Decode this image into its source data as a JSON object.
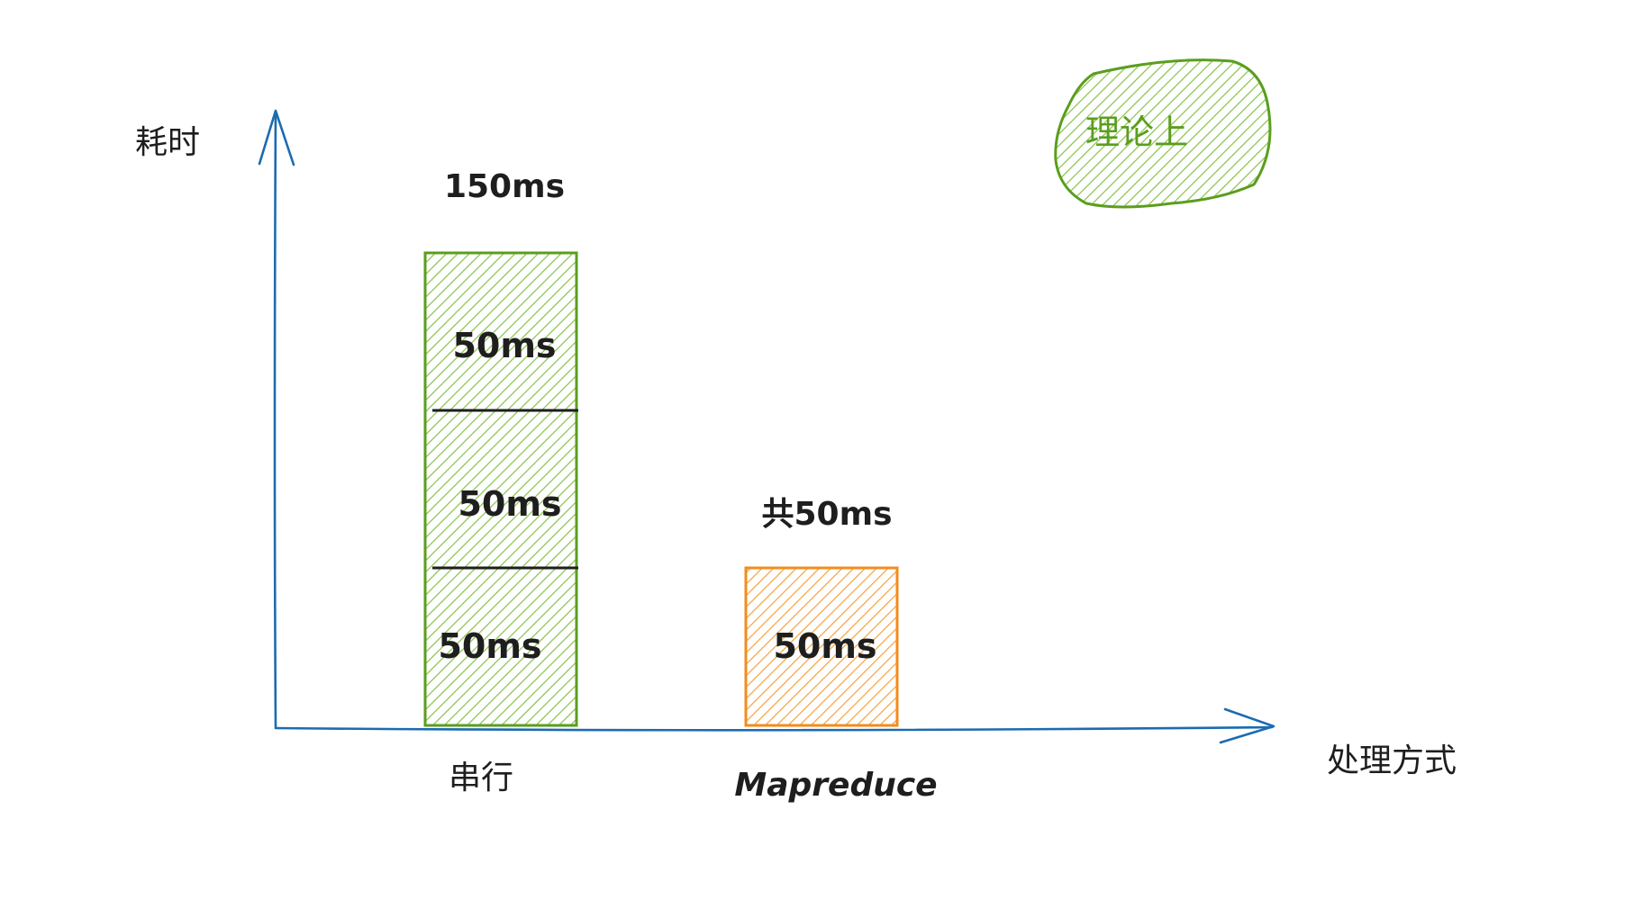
{
  "chart_data": {
    "type": "bar",
    "xlabel": "处理方式",
    "ylabel": "耗时",
    "categories": [
      "串行",
      "Mapreduce"
    ],
    "values": [
      150,
      50
    ],
    "unit": "ms",
    "total_labels": [
      "150ms",
      "共50ms"
    ],
    "segments": [
      {
        "category": "串行",
        "values": [
          50,
          50,
          50
        ],
        "labels": [
          "50ms",
          "50ms",
          "50ms"
        ]
      },
      {
        "category": "Mapreduce",
        "values": [
          50
        ],
        "labels": [
          "50ms"
        ]
      }
    ],
    "colors": {
      "serial": "#7bc043",
      "serial_stroke": "#5b9e1e",
      "mapreduce": "#f7a13a",
      "mapreduce_stroke": "#f08c1e",
      "axis": "#1c6bb0"
    },
    "ylim": [
      0,
      175
    ],
    "grid": false,
    "annotation": "理论上"
  }
}
